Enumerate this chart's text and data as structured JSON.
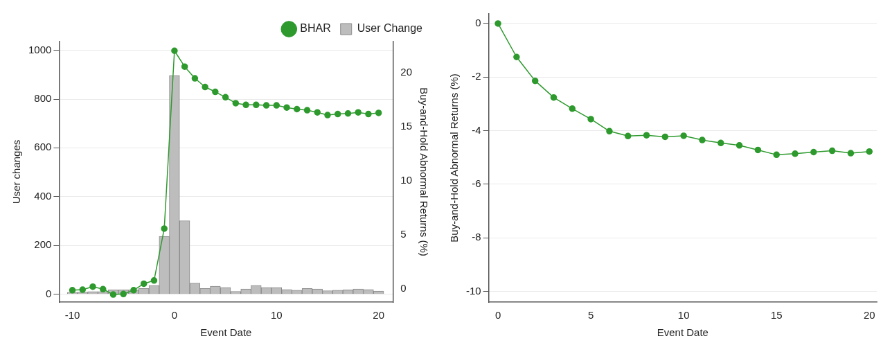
{
  "chart_data": [
    {
      "type": "bar",
      "xlabel": "Event Date",
      "ylabel": "User changes",
      "y2label": "Buy-and-Hold Abnormal Returns (%)",
      "x": [
        -10,
        -9,
        -8,
        -7,
        -6,
        -5,
        -4,
        -3,
        -2,
        -1,
        0,
        1,
        2,
        3,
        4,
        5,
        6,
        7,
        8,
        9,
        10,
        11,
        12,
        13,
        14,
        15,
        16,
        17,
        18,
        19,
        20
      ],
      "series": [
        {
          "name": "BHAR",
          "type": "line",
          "axis": "y2",
          "color": "#2e9a2e",
          "values": [
            -0.1,
            -0.05,
            0.23,
            0,
            -0.5,
            -0.45,
            -0.1,
            0.5,
            0.8,
            5.6,
            22.05,
            20.58,
            19.5,
            18.7,
            18.25,
            17.75,
            17.2,
            17.05,
            17.05,
            17.0,
            17.0,
            16.8,
            16.65,
            16.55,
            16.35,
            16.1,
            16.2,
            16.25,
            16.35,
            16.2,
            16.3
          ]
        },
        {
          "name": "User Change",
          "type": "bar",
          "color": "#bdbdbd",
          "values": [
            7,
            8,
            10,
            10,
            17,
            17,
            17,
            23,
            36,
            237,
            897,
            301,
            45,
            23,
            32,
            27,
            11,
            21,
            36,
            27,
            27,
            19,
            16,
            23,
            21,
            14,
            16,
            17,
            21,
            19,
            12
          ]
        }
      ],
      "xlim": [
        -11.3,
        21.4
      ],
      "xticks": [
        -10,
        0,
        10,
        20
      ],
      "ylim": [
        -33,
        1036
      ],
      "yticks": [
        0,
        200,
        400,
        600,
        800,
        1000
      ],
      "y2lim": [
        -1.2,
        22.9
      ],
      "y2ticks": [
        0,
        5,
        10,
        15,
        20
      ],
      "grid": "y",
      "legend": "top right",
      "marker": "circle",
      "line_style": "solid"
    },
    {
      "type": "line",
      "xlabel": "Event Date",
      "ylabel": "Buy-and-Hold Abnormal Returns (%)",
      "x": [
        0,
        1,
        2,
        3,
        4,
        5,
        6,
        7,
        8,
        9,
        10,
        11,
        12,
        13,
        14,
        15,
        16,
        17,
        18,
        19,
        20
      ],
      "series": [
        {
          "color": "#2e9a2e",
          "values": [
            0,
            -1.25,
            -2.14,
            -2.76,
            -3.18,
            -3.57,
            -4.02,
            -4.2,
            -4.17,
            -4.23,
            -4.19,
            -4.35,
            -4.46,
            -4.55,
            -4.72,
            -4.9,
            -4.86,
            -4.8,
            -4.75,
            -4.84,
            -4.78
          ]
        }
      ],
      "xlim": [
        -0.5,
        20.4
      ],
      "xticks": [
        0,
        5,
        10,
        15,
        20
      ],
      "ylim": [
        -10.4,
        0.36
      ],
      "yticks": [
        0,
        -2,
        -4,
        -6,
        -8,
        -10
      ],
      "grid": "y",
      "marker": "circle",
      "line_style": "solid"
    }
  ]
}
